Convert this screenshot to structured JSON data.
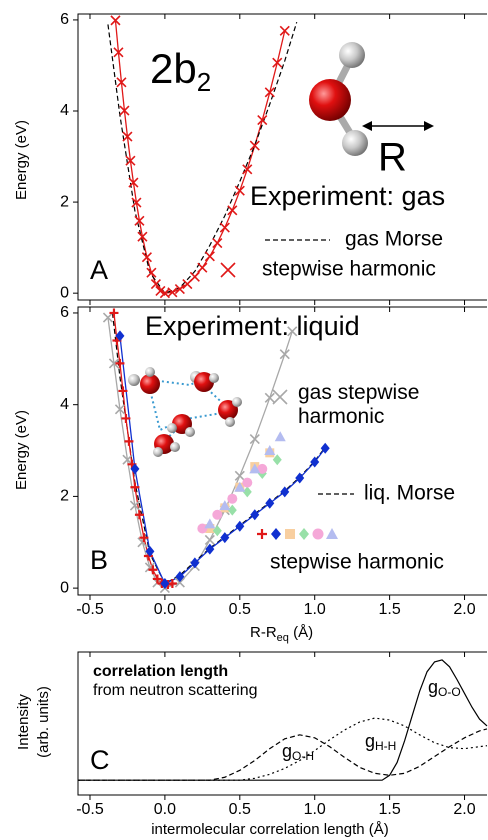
{
  "chart_data": [
    {
      "type": "line",
      "panel": "A",
      "title": {
        "main": "2b",
        "sub": "2"
      },
      "subtitle": "Experiment: gas",
      "annotation": "R",
      "y_label": "Energy (eV)",
      "xlim": [
        -0.58,
        2.15
      ],
      "ylim": [
        -0.15,
        6.13
      ],
      "yticks": [
        0,
        2,
        4,
        6
      ],
      "series": [
        {
          "name": "stepwise harmonic",
          "color": "#e01818",
          "marker": "x",
          "line": "solid",
          "x": [
            -0.33,
            -0.31,
            -0.29,
            -0.27,
            -0.25,
            -0.23,
            -0.21,
            -0.19,
            -0.17,
            -0.15,
            -0.12,
            -0.09,
            -0.06,
            -0.03,
            0,
            0.05,
            0.1,
            0.15,
            0.2,
            0.25,
            0.3,
            0.35,
            0.4,
            0.45,
            0.5,
            0.55,
            0.6,
            0.65,
            0.7,
            0.75,
            0.8
          ],
          "values": [
            5.99,
            5.29,
            4.63,
            4.01,
            3.44,
            2.91,
            2.43,
            1.99,
            1.59,
            1.24,
            0.79,
            0.45,
            0.2,
            0.05,
            0,
            0.02,
            0.09,
            0.2,
            0.36,
            0.56,
            0.81,
            1.1,
            1.44,
            1.82,
            2.25,
            2.72,
            3.24,
            3.8,
            4.41,
            5.06,
            5.76
          ]
        },
        {
          "name": "gas Morse",
          "color": "#000000",
          "line": "dashed",
          "x": [
            -0.38,
            -0.3,
            -0.2,
            -0.1,
            0,
            0.1,
            0.2,
            0.3,
            0.4,
            0.5,
            0.6,
            0.7,
            0.8,
            0.88
          ],
          "values": [
            5.9,
            3.9,
            1.8,
            0.45,
            0,
            0.12,
            0.48,
            1.05,
            1.7,
            2.45,
            3.25,
            4.15,
            5.1,
            5.95
          ]
        }
      ]
    },
    {
      "type": "line",
      "panel": "B",
      "subtitle": "Experiment: liquid",
      "y_label": "Energy (eV)",
      "x_label": {
        "main": "R-R",
        "sub": "eq",
        "unit": " (Å)"
      },
      "xlim": [
        -0.58,
        2.15
      ],
      "ylim": [
        -0.15,
        6.13
      ],
      "yticks": [
        0,
        2,
        4,
        6
      ],
      "xticks": [
        -0.5,
        {
          "value": 0,
          "label": "0.0"
        },
        0.5,
        {
          "value": 1,
          "label": "1.0"
        },
        1.5,
        {
          "value": 2,
          "label": "2.0"
        }
      ],
      "marker_legend_label": "stepwise harmonic",
      "series": [
        {
          "name": "gas stepwise harmonic",
          "color": "#a8a8a8",
          "marker": "x",
          "line": "solid",
          "x": [
            -0.38,
            -0.34,
            -0.3,
            -0.25,
            -0.2,
            -0.15,
            -0.1,
            -0.05,
            0,
            0.1,
            0.2,
            0.3,
            0.4,
            0.5,
            0.6,
            0.7,
            0.8,
            0.85
          ],
          "values": [
            5.9,
            4.9,
            3.9,
            2.8,
            1.8,
            1.0,
            0.45,
            0.12,
            0,
            0.12,
            0.48,
            1.05,
            1.7,
            2.45,
            3.25,
            4.15,
            5.1,
            5.6
          ]
        },
        {
          "name": "liq. Morse",
          "color": "#000000",
          "line": "dashed",
          "x": [
            -0.35,
            -0.3,
            -0.2,
            -0.1,
            0,
            0.1,
            0.2,
            0.3,
            0.4,
            0.5,
            0.6,
            0.7,
            0.8,
            0.9,
            1.0,
            1.07
          ],
          "values": [
            6.0,
            4.6,
            2.3,
            0.75,
            0.1,
            0.28,
            0.58,
            0.87,
            1.12,
            1.37,
            1.62,
            1.87,
            2.12,
            2.42,
            2.77,
            3.07
          ]
        },
        {
          "color": "#e01818",
          "marker": "plus",
          "line": "solid",
          "x": [
            -0.34,
            -0.32,
            -0.3,
            -0.28,
            -0.26,
            -0.24,
            -0.22,
            -0.2,
            -0.17,
            -0.14,
            -0.11,
            -0.08,
            -0.05,
            -0.02,
            0.02,
            0.05
          ],
          "values": [
            6.0,
            5.4,
            4.9,
            4.3,
            3.7,
            3.2,
            2.7,
            2.2,
            1.6,
            1.1,
            0.7,
            0.4,
            0.2,
            0.1,
            0.08,
            0.1
          ]
        },
        {
          "color": "#1030d0",
          "marker": "diamond",
          "line": "solid",
          "x": [
            -0.3,
            -0.2,
            -0.1,
            0,
            0.1,
            0.2,
            0.3,
            0.4,
            0.5,
            0.6,
            0.7,
            0.8,
            0.9,
            1.0,
            1.07
          ],
          "values": [
            5.5,
            2.6,
            0.8,
            0.1,
            0.25,
            0.55,
            0.85,
            1.1,
            1.35,
            1.6,
            1.85,
            2.1,
            2.4,
            2.75,
            3.05
          ]
        },
        {
          "color": "#f8cfa0",
          "marker": "square",
          "x": [
            0.3,
            0.4,
            0.5,
            0.6,
            0.7
          ],
          "values": [
            1.3,
            1.75,
            2.2,
            2.65,
            2.95
          ]
        },
        {
          "color": "#98e0a8",
          "marker": "diamond",
          "x": [
            0.35,
            0.45,
            0.55,
            0.65,
            0.75
          ],
          "values": [
            1.25,
            1.7,
            2.1,
            2.5,
            2.8
          ]
        },
        {
          "color": "#f5a8d8",
          "marker": "circle",
          "x": [
            0.25,
            0.35,
            0.45,
            0.55,
            0.65
          ],
          "values": [
            1.3,
            1.6,
            1.95,
            2.3,
            2.6
          ]
        },
        {
          "color": "#b4bcf0",
          "marker": "triangle",
          "x": [
            0.3,
            0.4,
            0.5,
            0.6,
            0.7,
            0.77
          ],
          "values": [
            1.4,
            1.8,
            2.2,
            2.6,
            3.0,
            3.3
          ]
        }
      ]
    },
    {
      "type": "line",
      "panel": "C",
      "title": "correlation length",
      "subtitle": "from neutron scattering",
      "y_label": [
        "Intensity",
        "(arb. units)"
      ],
      "x_label": "intermolecular correlation length (Å)",
      "xlim": [
        -0.58,
        2.15
      ],
      "ylim": [
        -0.15,
        1.3
      ],
      "xticks": [
        -0.5,
        {
          "value": 0,
          "label": "0.0"
        },
        0.5,
        {
          "value": 1,
          "label": "1.0"
        },
        1.5,
        {
          "value": 2,
          "label": "2.0"
        }
      ],
      "series": [
        {
          "label": {
            "main": "g",
            "sub": "O-O"
          },
          "color": "#000000",
          "line": "solid",
          "x": [
            -0.58,
            1.45,
            1.5,
            1.55,
            1.6,
            1.65,
            1.7,
            1.75,
            1.8,
            1.85,
            1.9,
            1.95,
            2.0,
            2.05,
            2.1,
            2.15
          ],
          "values": [
            0,
            0,
            0.05,
            0.18,
            0.4,
            0.65,
            0.9,
            1.1,
            1.2,
            1.22,
            1.15,
            1.02,
            0.88,
            0.74,
            0.62,
            0.55
          ]
        },
        {
          "label": {
            "main": "g",
            "sub": "H-H"
          },
          "color": "#000000",
          "line": "dotted",
          "x": [
            -0.58,
            0.5,
            0.6,
            0.7,
            0.8,
            0.9,
            1.0,
            1.1,
            1.2,
            1.3,
            1.4,
            1.5,
            1.6,
            1.7,
            1.8,
            1.9,
            2.0,
            2.1,
            2.15
          ],
          "values": [
            0,
            0,
            0.02,
            0.06,
            0.12,
            0.2,
            0.3,
            0.41,
            0.51,
            0.59,
            0.63,
            0.61,
            0.55,
            0.46,
            0.38,
            0.33,
            0.32,
            0.34,
            0.35
          ]
        },
        {
          "label": {
            "main": "g",
            "sub": "O-H"
          },
          "color": "#000000",
          "line": "dashed",
          "x": [
            -0.58,
            0.3,
            0.4,
            0.5,
            0.6,
            0.7,
            0.8,
            0.9,
            1.0,
            1.1,
            1.2,
            1.3,
            1.4,
            1.5,
            1.6,
            1.7,
            1.8,
            1.9,
            2.0,
            2.1,
            2.15
          ],
          "values": [
            0,
            0,
            0.03,
            0.1,
            0.2,
            0.32,
            0.42,
            0.46,
            0.43,
            0.34,
            0.23,
            0.13,
            0.07,
            0.05,
            0.07,
            0.14,
            0.24,
            0.34,
            0.43,
            0.5,
            0.52
          ]
        }
      ]
    }
  ]
}
